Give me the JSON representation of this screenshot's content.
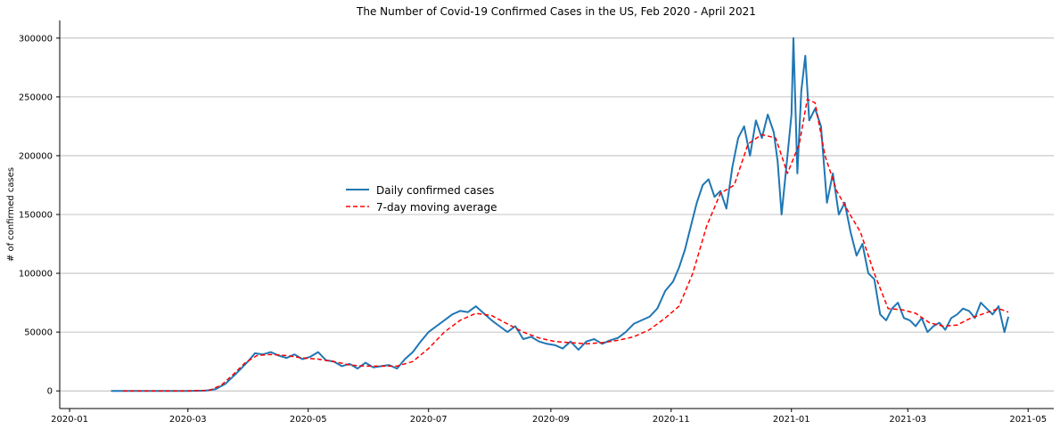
{
  "chart_data": {
    "type": "line",
    "title": "The Number of Covid-19 Confirmed Cases in the US, Feb 2020 - April 2021",
    "xlabel": "",
    "ylabel": "# of confirmed cases",
    "xlim": [
      "2019-12-27",
      "2021-05-14"
    ],
    "ylim": [
      -15000,
      315000
    ],
    "grid": "horizontal",
    "legend_position": "center-left",
    "x_ticks": [
      "2020-01-01",
      "2020-03-01",
      "2020-05-01",
      "2020-07-01",
      "2020-09-01",
      "2020-11-01",
      "2021-01-01",
      "2021-03-01",
      "2021-05-01"
    ],
    "x_tick_labels": [
      "2020-01",
      "2020-03",
      "2020-05",
      "2020-07",
      "2020-09",
      "2020-11",
      "2021-01",
      "2021-03",
      "2021-05"
    ],
    "y_ticks": [
      0,
      50000,
      100000,
      150000,
      200000,
      250000,
      300000
    ],
    "y_tick_labels": [
      "0",
      "50000",
      "100000",
      "150000",
      "200000",
      "250000",
      "300000"
    ],
    "series": [
      {
        "name": "Daily confirmed cases",
        "color": "#1f77b4",
        "dash": "solid",
        "x": [
          "2020-01-22",
          "2020-02-15",
          "2020-03-01",
          "2020-03-10",
          "2020-03-15",
          "2020-03-20",
          "2020-03-25",
          "2020-03-28",
          "2020-04-01",
          "2020-04-04",
          "2020-04-08",
          "2020-04-12",
          "2020-04-16",
          "2020-04-20",
          "2020-04-24",
          "2020-04-28",
          "2020-05-02",
          "2020-05-06",
          "2020-05-10",
          "2020-05-14",
          "2020-05-18",
          "2020-05-22",
          "2020-05-26",
          "2020-05-30",
          "2020-06-03",
          "2020-06-07",
          "2020-06-11",
          "2020-06-15",
          "2020-06-19",
          "2020-06-23",
          "2020-06-27",
          "2020-07-01",
          "2020-07-05",
          "2020-07-09",
          "2020-07-13",
          "2020-07-17",
          "2020-07-21",
          "2020-07-25",
          "2020-07-29",
          "2020-08-02",
          "2020-08-06",
          "2020-08-10",
          "2020-08-14",
          "2020-08-18",
          "2020-08-22",
          "2020-08-26",
          "2020-08-30",
          "2020-09-03",
          "2020-09-07",
          "2020-09-11",
          "2020-09-15",
          "2020-09-19",
          "2020-09-23",
          "2020-09-27",
          "2020-10-01",
          "2020-10-05",
          "2020-10-09",
          "2020-10-13",
          "2020-10-17",
          "2020-10-21",
          "2020-10-25",
          "2020-10-29",
          "2020-11-02",
          "2020-11-05",
          "2020-11-08",
          "2020-11-11",
          "2020-11-14",
          "2020-11-17",
          "2020-11-20",
          "2020-11-23",
          "2020-11-26",
          "2020-11-29",
          "2020-12-02",
          "2020-12-05",
          "2020-12-08",
          "2020-12-11",
          "2020-12-14",
          "2020-12-17",
          "2020-12-20",
          "2020-12-23",
          "2020-12-25",
          "2020-12-27",
          "2020-12-30",
          "2021-01-01",
          "2021-01-02",
          "2021-01-04",
          "2021-01-06",
          "2021-01-08",
          "2021-01-10",
          "2021-01-13",
          "2021-01-16",
          "2021-01-19",
          "2021-01-22",
          "2021-01-25",
          "2021-01-28",
          "2021-01-31",
          "2021-02-03",
          "2021-02-06",
          "2021-02-09",
          "2021-02-12",
          "2021-02-15",
          "2021-02-18",
          "2021-02-21",
          "2021-02-24",
          "2021-02-27",
          "2021-03-02",
          "2021-03-05",
          "2021-03-08",
          "2021-03-11",
          "2021-03-14",
          "2021-03-17",
          "2021-03-20",
          "2021-03-23",
          "2021-03-26",
          "2021-03-29",
          "2021-04-01",
          "2021-04-04",
          "2021-04-07",
          "2021-04-10",
          "2021-04-13",
          "2021-04-16",
          "2021-04-19",
          "2021-04-21"
        ],
        "y": [
          0,
          0,
          0,
          200,
          1500,
          6000,
          14000,
          19000,
          26000,
          32000,
          31000,
          33000,
          30000,
          28000,
          31000,
          27000,
          29000,
          33000,
          26000,
          25000,
          21000,
          23000,
          19000,
          24000,
          20000,
          21000,
          22000,
          19000,
          27000,
          33000,
          42000,
          50000,
          55000,
          60000,
          65000,
          68000,
          67000,
          72000,
          66000,
          60000,
          55000,
          50000,
          55000,
          44000,
          46000,
          42000,
          40000,
          39000,
          36000,
          42000,
          35000,
          42000,
          44000,
          40000,
          43000,
          45000,
          50000,
          57000,
          60000,
          63000,
          70000,
          85000,
          93000,
          105000,
          120000,
          140000,
          160000,
          175000,
          180000,
          165000,
          170000,
          155000,
          190000,
          215000,
          225000,
          200000,
          230000,
          215000,
          235000,
          220000,
          195000,
          150000,
          200000,
          235000,
          300000,
          185000,
          255000,
          285000,
          230000,
          240000,
          225000,
          160000,
          185000,
          150000,
          160000,
          135000,
          115000,
          125000,
          100000,
          95000,
          65000,
          60000,
          70000,
          75000,
          62000,
          60000,
          55000,
          62000,
          50000,
          55000,
          58000,
          52000,
          62000,
          65000,
          70000,
          68000,
          62000,
          75000,
          70000,
          65000,
          72000,
          50000,
          63000
        ]
      },
      {
        "name": "7-day moving average",
        "color": "#ff0000",
        "dash": "dashed",
        "x": [
          "2020-01-28",
          "2020-03-01",
          "2020-03-12",
          "2020-03-18",
          "2020-03-24",
          "2020-03-30",
          "2020-04-05",
          "2020-04-12",
          "2020-04-20",
          "2020-04-28",
          "2020-05-06",
          "2020-05-14",
          "2020-05-22",
          "2020-05-30",
          "2020-06-07",
          "2020-06-15",
          "2020-06-23",
          "2020-07-01",
          "2020-07-09",
          "2020-07-17",
          "2020-07-25",
          "2020-08-02",
          "2020-08-10",
          "2020-08-18",
          "2020-08-26",
          "2020-09-03",
          "2020-09-11",
          "2020-09-19",
          "2020-09-27",
          "2020-10-05",
          "2020-10-13",
          "2020-10-21",
          "2020-10-29",
          "2020-11-05",
          "2020-11-12",
          "2020-11-19",
          "2020-11-26",
          "2020-12-03",
          "2020-12-10",
          "2020-12-17",
          "2020-12-24",
          "2020-12-30",
          "2021-01-05",
          "2021-01-09",
          "2021-01-13",
          "2021-01-18",
          "2021-01-24",
          "2021-01-30",
          "2021-02-05",
          "2021-02-12",
          "2021-02-19",
          "2021-02-26",
          "2021-03-05",
          "2021-03-12",
          "2021-03-19",
          "2021-03-26",
          "2021-04-02",
          "2021-04-09",
          "2021-04-16",
          "2021-04-21"
        ],
        "y": [
          0,
          0,
          500,
          5000,
          14000,
          24000,
          30000,
          31000,
          30000,
          28000,
          27000,
          25000,
          22000,
          21000,
          21000,
          21000,
          25000,
          36000,
          50000,
          60000,
          66000,
          64000,
          57000,
          50000,
          45000,
          42000,
          41000,
          40000,
          41000,
          43000,
          46000,
          52000,
          62000,
          72000,
          100000,
          140000,
          168000,
          175000,
          210000,
          218000,
          215000,
          185000,
          210000,
          248000,
          245000,
          200000,
          170000,
          152000,
          135000,
          100000,
          70000,
          69000,
          66000,
          58000,
          55000,
          56000,
          62000,
          66000,
          70000,
          67000
        ]
      }
    ]
  }
}
